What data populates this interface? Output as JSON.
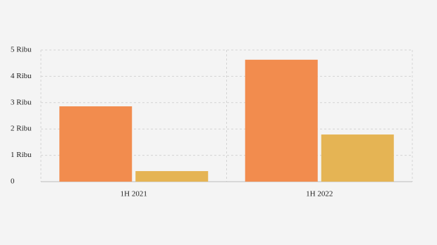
{
  "chart_data": {
    "type": "bar",
    "categories": [
      "1H 2021",
      "1H 2022"
    ],
    "series": [
      {
        "color": "#f28c4e",
        "values": [
          2860,
          4630
        ]
      },
      {
        "color": "#e5b454",
        "values": [
          400,
          1790
        ]
      }
    ],
    "ylim": [
      0,
      5000
    ],
    "yticks": [
      0,
      {
        "value": 1000,
        "label": "1 Ribu"
      },
      {
        "value": 2000,
        "label": "2 Ribu"
      },
      {
        "value": 3000,
        "label": "3 Ribu"
      },
      {
        "value": 4000,
        "label": "4 Ribu"
      },
      {
        "value": 5000,
        "label": "5 Ribu"
      }
    ],
    "grid": true
  }
}
